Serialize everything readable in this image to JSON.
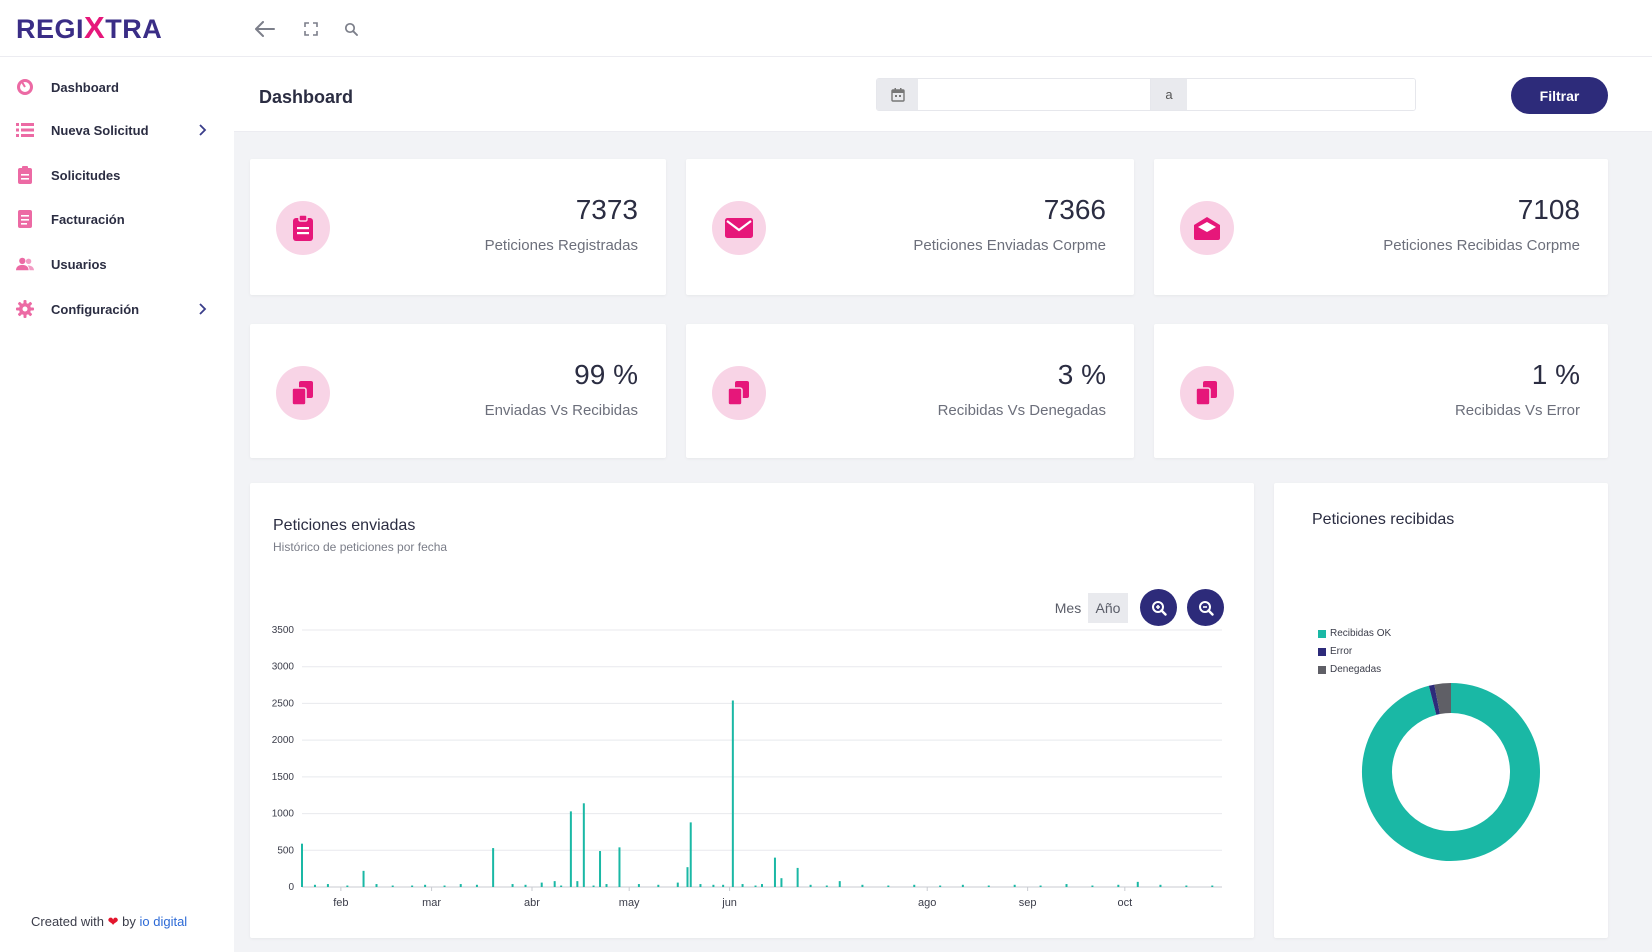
{
  "brand": {
    "prefix": "REGI",
    "x": "X",
    "suffix": "TRA",
    "color": "#3a2d86",
    "accent": "#e6177a"
  },
  "topbar": {
    "icons": [
      "arrow-left-icon",
      "fullscreen-icon",
      "search-icon"
    ]
  },
  "sidebar": {
    "items": [
      {
        "label": "Dashboard",
        "icon": "dashboard-icon",
        "has_chevron": false
      },
      {
        "label": "Nueva Solicitud",
        "icon": "list-icon",
        "has_chevron": true
      },
      {
        "label": "Solicitudes",
        "icon": "clipboard-icon",
        "has_chevron": false
      },
      {
        "label": "Facturación",
        "icon": "invoice-icon",
        "has_chevron": false
      },
      {
        "label": "Usuarios",
        "icon": "users-icon",
        "has_chevron": false
      },
      {
        "label": "Configuración",
        "icon": "gear-icon",
        "has_chevron": true
      }
    ],
    "footer": {
      "prefix": "Created with",
      "by": "by",
      "link": "io digital"
    }
  },
  "header": {
    "title": "Dashboard",
    "date_from": "",
    "date_separator": "a",
    "date_to": "",
    "filter_label": "Filtrar"
  },
  "stats": [
    {
      "value": "7373",
      "caption": "Peticiones Registradas",
      "icon": "clipboard-icon"
    },
    {
      "value": "7366",
      "caption": "Peticiones Enviadas Corpme",
      "icon": "envelope-icon"
    },
    {
      "value": "7108",
      "caption": "Peticiones Recibidas Corpme",
      "icon": "envelope-open-icon"
    },
    {
      "value": "99 %",
      "caption": "Enviadas Vs Recibidas",
      "icon": "copy-icon"
    },
    {
      "value": "3 %",
      "caption": "Recibidas Vs Denegadas",
      "icon": "copy-icon"
    },
    {
      "value": "1 %",
      "caption": "Recibidas Vs Error",
      "icon": "copy-icon"
    }
  ],
  "enviadas_card": {
    "title": "Peticiones enviadas",
    "subtitle": "Histórico de peticiones por fecha",
    "toggle_mes": "Mes",
    "toggle_ano": "Año"
  },
  "recibidas_card": {
    "title": "Peticiones recibidas"
  },
  "colors": {
    "teal": "#1ab8a5",
    "navy": "#2d2b7a",
    "grey": "#5f5f66",
    "pink": "#e6177a",
    "pink_light": "#f8d4e6"
  },
  "chart_data": [
    {
      "type": "bar",
      "title": "Peticiones enviadas",
      "subtitle": "Histórico de peticiones por fecha",
      "x_tick_labels": [
        "feb",
        "mar",
        "abr",
        "may",
        "jun",
        "ago",
        "sep",
        "oct"
      ],
      "y_ticks": [
        0,
        500,
        1000,
        1500,
        2000,
        2500,
        3000,
        3500
      ],
      "ylim": [
        0,
        3500
      ],
      "xlim": [
        "2023-01-20",
        "2023-10-31"
      ],
      "x_ticks": [
        "2023-02-01",
        "2023-03-01",
        "2023-04-01",
        "2023-05-01",
        "2023-06-01",
        "2023-08-01",
        "2023-09-01",
        "2023-10-01"
      ],
      "grid": true,
      "color": "#1ab8a5",
      "x": [
        "2023-01-20",
        "2023-01-24",
        "2023-01-28",
        "2023-02-03",
        "2023-02-08",
        "2023-02-12",
        "2023-02-17",
        "2023-02-23",
        "2023-02-27",
        "2023-03-05",
        "2023-03-10",
        "2023-03-15",
        "2023-03-20",
        "2023-03-26",
        "2023-03-30",
        "2023-04-04",
        "2023-04-08",
        "2023-04-10",
        "2023-04-13",
        "2023-04-15",
        "2023-04-17",
        "2023-04-20",
        "2023-04-22",
        "2023-04-24",
        "2023-04-28",
        "2023-05-04",
        "2023-05-10",
        "2023-05-16",
        "2023-05-19",
        "2023-05-20",
        "2023-05-23",
        "2023-05-27",
        "2023-05-30",
        "2023-06-02",
        "2023-06-05",
        "2023-06-09",
        "2023-06-11",
        "2023-06-15",
        "2023-06-17",
        "2023-06-22",
        "2023-06-26",
        "2023-07-01",
        "2023-07-05",
        "2023-07-12",
        "2023-07-20",
        "2023-07-28",
        "2023-08-05",
        "2023-08-12",
        "2023-08-20",
        "2023-08-28",
        "2023-09-05",
        "2023-09-13",
        "2023-09-21",
        "2023-09-29",
        "2023-10-05",
        "2023-10-12",
        "2023-10-20",
        "2023-10-28"
      ],
      "values": [
        590,
        30,
        40,
        20,
        220,
        40,
        20,
        20,
        30,
        20,
        40,
        30,
        530,
        40,
        30,
        60,
        80,
        20,
        1030,
        80,
        1140,
        20,
        490,
        40,
        540,
        40,
        30,
        60,
        270,
        880,
        40,
        30,
        30,
        2540,
        40,
        20,
        40,
        400,
        120,
        260,
        30,
        20,
        80,
        30,
        20,
        30,
        20,
        30,
        20,
        30,
        20,
        40,
        20,
        30,
        70,
        30,
        20,
        20
      ]
    },
    {
      "type": "pie",
      "title": "Peticiones recibidas",
      "donut": true,
      "legend_position": "top-left",
      "categories": [
        "Recibidas OK",
        "Error",
        "Denegadas"
      ],
      "values": [
        96,
        1,
        3
      ],
      "colors": [
        "#1ab8a5",
        "#2d2b7a",
        "#5f5f66"
      ]
    }
  ]
}
